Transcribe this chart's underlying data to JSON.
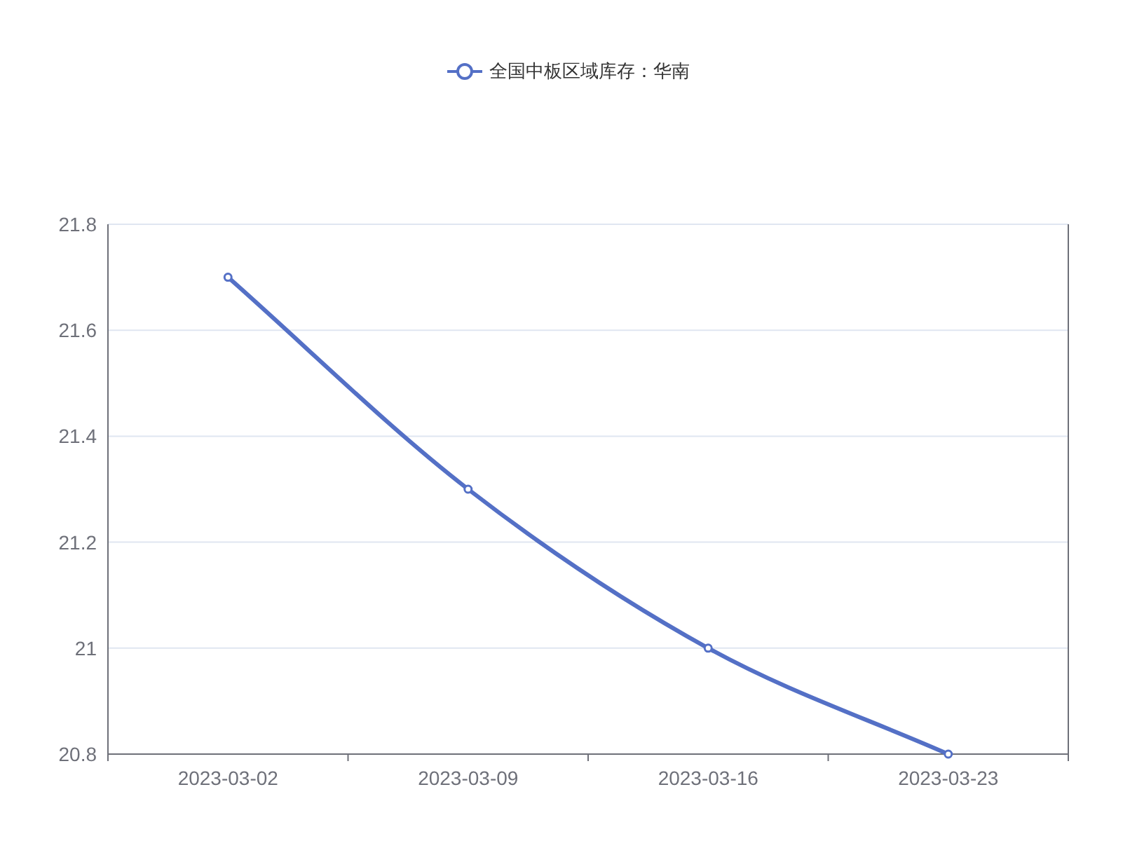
{
  "chart_data": {
    "type": "line",
    "categories": [
      "2023-03-02",
      "2023-03-09",
      "2023-03-16",
      "2023-03-23"
    ],
    "series": [
      {
        "name": "全国中板区域库存：华南",
        "color": "#5470c6",
        "values": [
          21.7,
          21.3,
          21.0,
          20.8
        ]
      }
    ],
    "ylim": [
      20.8,
      21.8
    ],
    "yticks": [
      20.8,
      21,
      21.2,
      21.4,
      21.6,
      21.8
    ],
    "grid": "y",
    "legend": "top",
    "marker": "circle",
    "line_style": "solid"
  }
}
